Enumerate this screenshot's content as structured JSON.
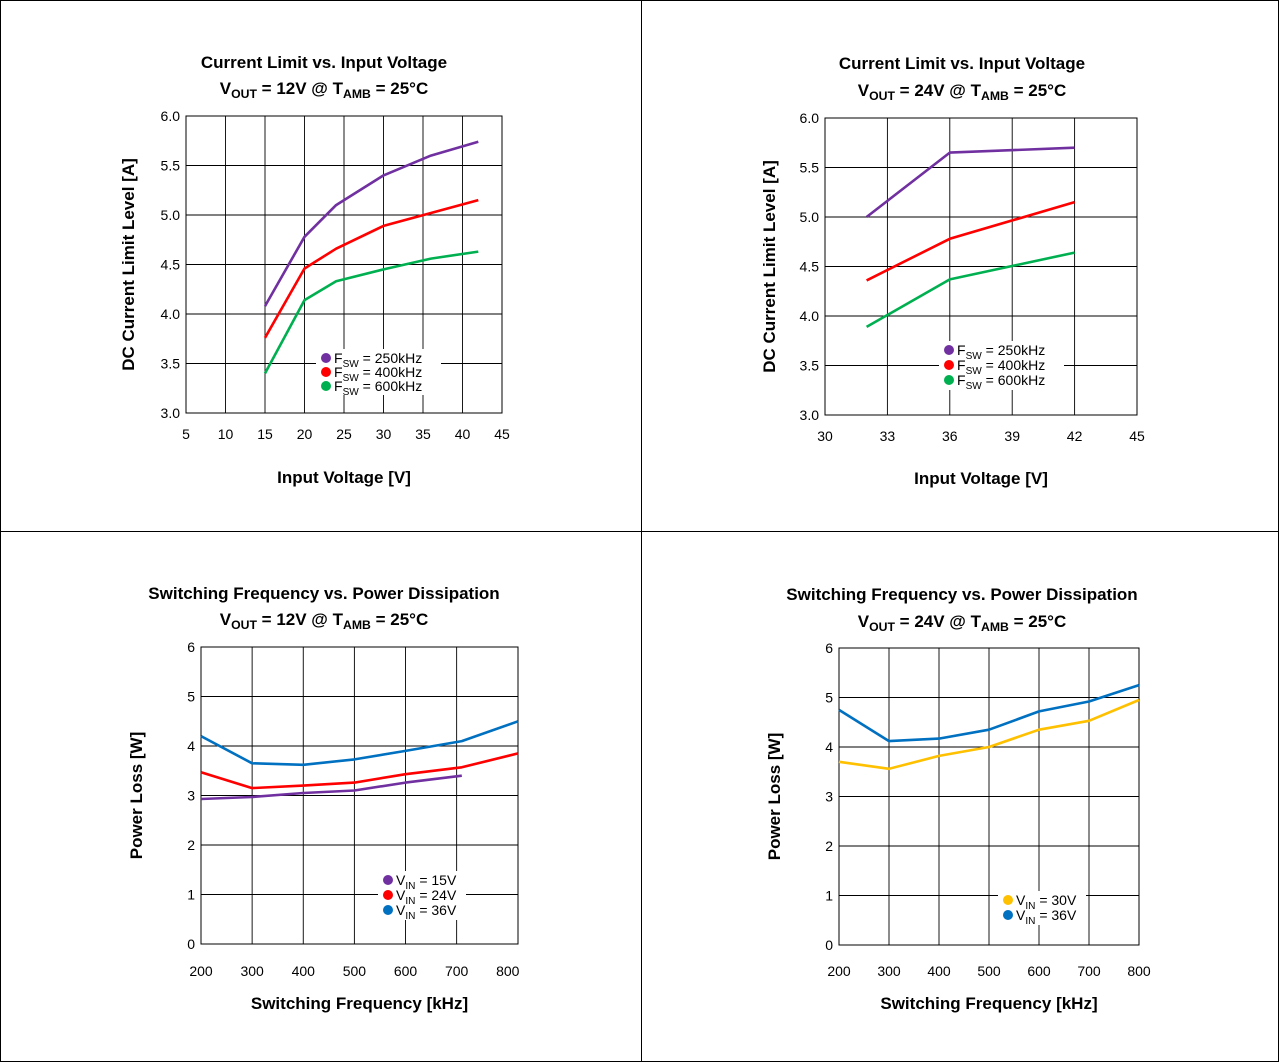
{
  "chart_data": [
    {
      "type": "line",
      "title": "Current Limit vs. Input Voltage",
      "subtitle": {
        "v": "V",
        "v_sub": "OUT",
        "mid": " = 12V @ T",
        "t_sub": "AMB",
        "end": " = 25°C"
      },
      "xlabel": "Input Voltage [V]",
      "ylabel": "DC Current Limit Level [A]",
      "xlim": [
        5,
        45
      ],
      "ylim": [
        3.0,
        6.0
      ],
      "xticks": [
        5,
        10,
        15,
        20,
        25,
        30,
        35,
        40,
        45
      ],
      "yticks": [
        3.0,
        3.5,
        4.0,
        4.5,
        5.0,
        5.5,
        6.0
      ],
      "xtick_labels": [
        "5",
        "10",
        "15",
        "20",
        "25",
        "30",
        "35",
        "40",
        "45"
      ],
      "ytick_labels": [
        "3.0",
        "3.5",
        "4.0",
        "4.5",
        "5.0",
        "5.5",
        "6.0"
      ],
      "grid": true,
      "legend_position": "bottom-right",
      "series": [
        {
          "name": "250kHz",
          "legend": {
            "p": "F",
            "sub": "SW",
            "s": " = 250kHz"
          },
          "color": "#7030A0",
          "x": [
            15,
            20,
            24,
            30,
            36,
            42
          ],
          "y": [
            4.08,
            4.78,
            5.1,
            5.4,
            5.6,
            5.74
          ]
        },
        {
          "name": "400kHz",
          "legend": {
            "p": "F",
            "sub": "SW",
            "s": " = 400kHz"
          },
          "color": "#FF0000",
          "x": [
            15,
            20,
            24,
            30,
            36,
            42
          ],
          "y": [
            3.76,
            4.46,
            4.66,
            4.89,
            5.02,
            5.15
          ]
        },
        {
          "name": "600kHz",
          "legend": {
            "p": "F",
            "sub": "SW",
            "s": " = 600kHz"
          },
          "color": "#00B050",
          "x": [
            15,
            20,
            24,
            30,
            36,
            42
          ],
          "y": [
            3.4,
            4.14,
            4.33,
            4.45,
            4.56,
            4.63
          ]
        }
      ]
    },
    {
      "type": "line",
      "title": "Current Limit vs. Input Voltage",
      "subtitle": {
        "v": "V",
        "v_sub": "OUT",
        "mid": " = 24V @ T",
        "t_sub": "AMB",
        "end": " = 25°C"
      },
      "xlabel": "Input Voltage [V]",
      "ylabel": "DC Current Limit Level [A]",
      "xlim": [
        30,
        45
      ],
      "ylim": [
        3.0,
        6.0
      ],
      "xticks": [
        30,
        33,
        36,
        39,
        42,
        45
      ],
      "yticks": [
        3.0,
        3.5,
        4.0,
        4.5,
        5.0,
        5.5,
        6.0
      ],
      "xtick_labels": [
        "30",
        "33",
        "36",
        "39",
        "42",
        "45"
      ],
      "ytick_labels": [
        "3.0",
        "3.5",
        "4.0",
        "4.5",
        "5.0",
        "5.5",
        "6.0"
      ],
      "grid": true,
      "legend_position": "bottom-right",
      "series": [
        {
          "name": "250kHz",
          "legend": {
            "p": "F",
            "sub": "SW",
            "s": " = 250kHz"
          },
          "color": "#7030A0",
          "x": [
            32,
            36,
            42
          ],
          "y": [
            5.0,
            5.65,
            5.7
          ]
        },
        {
          "name": "400kHz",
          "legend": {
            "p": "F",
            "sub": "SW",
            "s": " = 400kHz"
          },
          "color": "#FF0000",
          "x": [
            32,
            36,
            42
          ],
          "y": [
            4.36,
            4.78,
            5.15
          ]
        },
        {
          "name": "600kHz",
          "legend": {
            "p": "F",
            "sub": "SW",
            "s": " = 600kHz"
          },
          "color": "#00B050",
          "x": [
            32,
            36,
            42
          ],
          "y": [
            3.89,
            4.37,
            4.64
          ]
        }
      ]
    },
    {
      "type": "line",
      "title": "Switching Frequency vs. Power Dissipation",
      "subtitle": {
        "v": "V",
        "v_sub": "OUT",
        "mid": " = 12V @ T",
        "t_sub": "AMB",
        "end": " = 25°C"
      },
      "xlabel": "Switching Frequency [kHz]",
      "ylabel": "Power Loss [W]",
      "xlim": [
        200,
        820
      ],
      "ylim": [
        0,
        6
      ],
      "xticks": [
        200,
        300,
        400,
        500,
        600,
        700,
        800
      ],
      "yticks": [
        0,
        1,
        2,
        3,
        4,
        5,
        6
      ],
      "xtick_labels": [
        "200",
        "300",
        "400",
        "500",
        "600",
        "700",
        "800"
      ],
      "ytick_labels": [
        "0",
        "1",
        "2",
        "3",
        "4",
        "5",
        "6"
      ],
      "gridlines_x": [
        200,
        300,
        400,
        500,
        600,
        700,
        820
      ],
      "grid": true,
      "legend_position": "bottom-right",
      "series": [
        {
          "name": "15V",
          "legend": {
            "p": "V",
            "sub": "IN",
            "s": " = 15V"
          },
          "color": "#7030A0",
          "x": [
            200,
            300,
            400,
            500,
            600,
            710
          ],
          "y": [
            2.93,
            2.97,
            3.05,
            3.1,
            3.26,
            3.4
          ]
        },
        {
          "name": "24V",
          "legend": {
            "p": "V",
            "sub": "IN",
            "s": " = 24V"
          },
          "color": "#FF0000",
          "x": [
            200,
            300,
            400,
            500,
            600,
            710,
            820
          ],
          "y": [
            3.47,
            3.15,
            3.2,
            3.26,
            3.43,
            3.57,
            3.85
          ]
        },
        {
          "name": "36V",
          "legend": {
            "p": "V",
            "sub": "IN",
            "s": " = 36V"
          },
          "color": "#0070C0",
          "x": [
            200,
            300,
            400,
            500,
            600,
            710,
            820
          ],
          "y": [
            4.2,
            3.65,
            3.62,
            3.73,
            3.9,
            4.1,
            4.5
          ]
        }
      ]
    },
    {
      "type": "line",
      "title": "Switching Frequency vs. Power Dissipation",
      "subtitle": {
        "v": "V",
        "v_sub": "OUT",
        "mid": " = 24V @ T",
        "t_sub": "AMB",
        "end": " = 25°C"
      },
      "xlabel": "Switching Frequency [kHz]",
      "ylabel": "Power Loss [W]",
      "xlim": [
        200,
        800
      ],
      "ylim": [
        0,
        6
      ],
      "xticks": [
        200,
        300,
        400,
        500,
        600,
        700,
        800
      ],
      "yticks": [
        0,
        1,
        2,
        3,
        4,
        5,
        6
      ],
      "xtick_labels": [
        "200",
        "300",
        "400",
        "500",
        "600",
        "700",
        "800"
      ],
      "ytick_labels": [
        "0",
        "1",
        "2",
        "3",
        "4",
        "5",
        "6"
      ],
      "grid": true,
      "legend_position": "bottom-right",
      "series": [
        {
          "name": "30V",
          "legend": {
            "p": "V",
            "sub": "IN",
            "s": " = 30V"
          },
          "color": "#FFC000",
          "x": [
            200,
            300,
            400,
            500,
            600,
            700,
            800
          ],
          "y": [
            3.7,
            3.56,
            3.82,
            4.0,
            4.35,
            4.53,
            4.95
          ]
        },
        {
          "name": "36V",
          "legend": {
            "p": "V",
            "sub": "IN",
            "s": " = 36V"
          },
          "color": "#0070C0",
          "x": [
            200,
            300,
            400,
            500,
            600,
            700,
            800
          ],
          "y": [
            4.75,
            4.12,
            4.17,
            4.35,
            4.72,
            4.92,
            5.25
          ]
        }
      ]
    }
  ]
}
